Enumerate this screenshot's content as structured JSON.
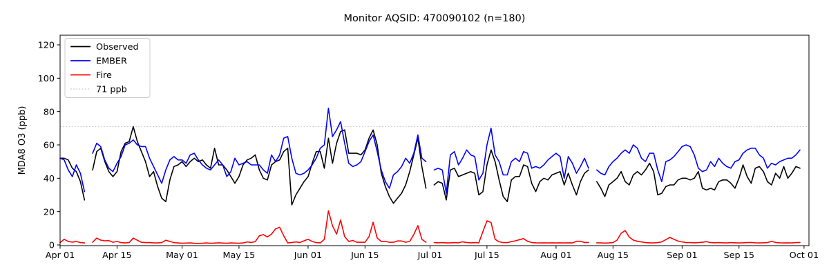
{
  "chart_data": {
    "type": "line",
    "title": "Monitor AQSID: 470090102 (n=180)",
    "ylabel": "MDA8 O3 (ppb)",
    "xlabel": "",
    "ylim": [
      0,
      126
    ],
    "yticks": [
      0,
      20,
      40,
      60,
      80,
      100,
      120
    ],
    "x_start_date": "Apr 01",
    "x_end_date": "Oct 01",
    "x_days_total": 183,
    "xtick_days": [
      0,
      14,
      30,
      44,
      61,
      75,
      91,
      105,
      122,
      136,
      153,
      167,
      183
    ],
    "xtick_labels": [
      "Apr 01",
      "Apr 15",
      "May 01",
      "May 15",
      "Jun 01",
      "Jun 15",
      "Jul 01",
      "Jul 15",
      "Aug 01",
      "Aug 15",
      "Sep 01",
      "Sep 15",
      "Oct 01"
    ],
    "grid": false,
    "legend_position": "upper-left",
    "threshold": {
      "label": "71 ppb",
      "value": 71,
      "color": "#c9c9c9",
      "style": "dotted"
    },
    "series": [
      {
        "name": "Observed",
        "color": "#000000",
        "values": [
          52,
          52,
          51,
          46,
          44,
          38,
          27,
          null,
          45,
          56,
          58,
          50,
          44,
          41,
          44,
          56,
          61,
          62,
          71,
          62,
          56,
          50,
          41,
          44,
          35,
          28,
          26,
          39,
          47,
          48,
          50,
          47,
          50,
          52,
          50,
          51,
          48,
          46,
          58,
          48,
          48,
          45,
          41,
          37,
          41,
          48,
          51,
          52,
          54,
          45,
          40,
          39,
          48,
          50,
          51,
          56,
          58,
          24,
          30,
          34,
          38,
          41,
          49,
          56,
          56,
          46,
          64,
          49,
          61,
          68,
          69,
          55,
          55,
          55,
          54,
          57,
          64,
          69,
          60,
          43,
          35,
          29,
          25,
          28,
          31,
          36,
          44,
          54,
          64,
          47,
          34,
          null,
          36,
          38,
          37,
          27,
          45,
          46,
          41,
          42,
          43,
          44,
          43,
          30,
          32,
          48,
          57,
          50,
          39,
          29,
          26,
          39,
          41,
          41,
          48,
          47,
          37,
          32,
          38,
          40,
          39,
          42,
          43,
          44,
          36,
          43,
          36,
          30,
          38,
          43,
          45,
          null,
          38,
          34,
          29,
          36,
          38,
          40,
          44,
          38,
          36,
          42,
          44,
          42,
          45,
          49,
          44,
          30,
          31,
          35,
          36,
          36,
          39,
          40,
          40,
          39,
          40,
          44,
          34,
          33,
          34,
          33,
          38,
          39,
          39,
          37,
          34,
          40,
          48,
          41,
          37,
          46,
          47,
          44,
          38,
          36,
          43,
          40,
          47,
          40,
          43,
          47,
          46
        ]
      },
      {
        "name": "EMBER",
        "color": "#0000ff",
        "values": [
          52,
          51,
          45,
          41,
          48,
          43,
          32,
          null,
          55,
          61,
          59,
          51,
          46,
          44,
          49,
          53,
          60,
          61,
          63,
          60,
          59,
          59,
          52,
          47,
          42,
          37,
          45,
          51,
          53,
          51,
          51,
          49,
          54,
          55,
          51,
          48,
          46,
          45,
          48,
          51,
          48,
          41,
          44,
          52,
          48,
          49,
          50,
          48,
          48,
          48,
          45,
          43,
          54,
          50,
          54,
          64,
          65,
          52,
          43,
          42,
          43,
          45,
          48,
          52,
          58,
          60,
          82,
          65,
          69,
          74,
          61,
          49,
          47,
          48,
          50,
          56,
          62,
          66,
          56,
          45,
          38,
          34,
          42,
          44,
          47,
          52,
          49,
          55,
          66,
          52,
          50,
          null,
          45,
          46,
          45,
          31,
          54,
          56,
          48,
          52,
          57,
          54,
          53,
          39,
          43,
          60,
          70,
          54,
          50,
          42,
          42,
          50,
          52,
          50,
          56,
          55,
          46,
          47,
          46,
          48,
          51,
          53,
          55,
          53,
          40,
          53,
          49,
          43,
          47,
          52,
          46,
          null,
          45,
          43,
          42,
          47,
          50,
          52,
          55,
          57,
          55,
          60,
          58,
          52,
          50,
          55,
          55,
          45,
          38,
          50,
          51,
          53,
          56,
          59,
          60,
          59,
          54,
          46,
          44,
          45,
          50,
          47,
          52,
          49,
          47,
          46,
          50,
          51,
          55,
          57,
          58,
          58,
          54,
          52,
          46,
          49,
          48,
          50,
          51,
          52,
          52,
          54,
          57
        ]
      },
      {
        "name": "Fire",
        "color": "#ff0000",
        "values": [
          1.4,
          3.4,
          2.1,
          1.7,
          2.1,
          1.4,
          1.2,
          null,
          1.6,
          4.1,
          2.9,
          2.5,
          2.6,
          1.6,
          2.1,
          1.4,
          1.2,
          1.4,
          4.1,
          2.8,
          1.6,
          1.4,
          1.4,
          1.2,
          1.2,
          1.4,
          2.8,
          2.1,
          1.4,
          1.2,
          1,
          1.1,
          1.2,
          1,
          0.9,
          1,
          1.2,
          1,
          1.1,
          1.3,
          1.1,
          1,
          1.2,
          1.1,
          1,
          1.2,
          1.8,
          1.5,
          2,
          5.5,
          6.2,
          4.8,
          6.5,
          9.6,
          10.6,
          5.5,
          1.2,
          1.5,
          1.8,
          1.5,
          2.5,
          3.4,
          2.1,
          1.4,
          1.2,
          3.4,
          20.5,
          11.5,
          6.5,
          15,
          5,
          2.1,
          2.7,
          1.6,
          1.6,
          1.6,
          5,
          13.6,
          4.2,
          2.1,
          2.1,
          1.6,
          1.6,
          2.4,
          2.4,
          1.6,
          2.1,
          6.3,
          11.6,
          3.4,
          1.6,
          null,
          1.4,
          1.3,
          1.4,
          1.2,
          1.3,
          1.4,
          1.3,
          1.9,
          1.5,
          1.3,
          1.4,
          1.3,
          8,
          14.5,
          13.5,
          3.4,
          1.9,
          1.4,
          1.4,
          2,
          2.5,
          3.2,
          3.8,
          2.2,
          1.5,
          1.3,
          1.2,
          1.3,
          1.2,
          1.3,
          1.2,
          1.3,
          1.2,
          1.3,
          1.2,
          2.2,
          2.2,
          1.5,
          1.5,
          null,
          1.3,
          1.2,
          1.1,
          1.2,
          1.4,
          2.9,
          7,
          8.6,
          4.7,
          2.9,
          2.2,
          1.8,
          1.4,
          1.3,
          1.2,
          1.4,
          1.8,
          3.2,
          4.5,
          3.4,
          2.3,
          1.8,
          1.4,
          1.4,
          1.3,
          1.4,
          1.6,
          2,
          1.4,
          1.3,
          1.4,
          1.3,
          1.2,
          1.4,
          1.3,
          1.2,
          1.3,
          1.4,
          1.5,
          1.3,
          1.2,
          1.3,
          1.4,
          2.2,
          1.5,
          1.3,
          1.2,
          1.3,
          1.2,
          1.4,
          1.5
        ]
      }
    ]
  }
}
